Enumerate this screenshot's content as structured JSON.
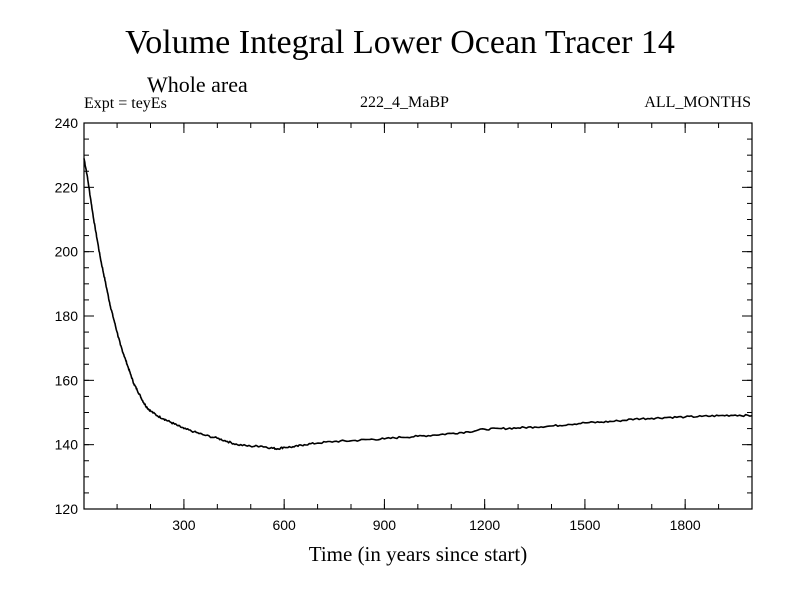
{
  "title": "Volume Integral Lower Ocean Tracer 14",
  "subtitle": "Whole area",
  "expt_label": "Expt = teyEs",
  "run_label": "222_4_MaBP",
  "months_label": "ALL_MONTHS",
  "chart_data": {
    "type": "line",
    "title": "Volume Integral Lower Ocean Tracer 14",
    "subtitle": "Whole area",
    "xlabel": "Time (in years since start)",
    "ylabel": "",
    "xlim": [
      1,
      2000
    ],
    "ylim": [
      120,
      240
    ],
    "x_ticks": [
      300,
      600,
      900,
      1200,
      1500,
      1800
    ],
    "y_ticks": [
      120,
      140,
      160,
      180,
      200,
      220,
      240
    ],
    "x_minor_step": 100,
    "y_minor_step": 5,
    "grid": false,
    "line_color": "#000000",
    "series": [
      {
        "name": "teyEs",
        "points": [
          [
            1,
            229
          ],
          [
            10,
            224
          ],
          [
            20,
            217
          ],
          [
            30,
            210
          ],
          [
            40,
            204
          ],
          [
            50,
            198
          ],
          [
            60,
            193
          ],
          [
            70,
            188
          ],
          [
            80,
            183
          ],
          [
            90,
            179
          ],
          [
            100,
            175
          ],
          [
            110,
            171
          ],
          [
            120,
            168
          ],
          [
            130,
            165
          ],
          [
            140,
            162
          ],
          [
            150,
            159
          ],
          [
            160,
            157
          ],
          [
            170,
            155
          ],
          [
            180,
            153
          ],
          [
            190,
            151.5
          ],
          [
            200,
            150.5
          ],
          [
            220,
            149
          ],
          [
            240,
            148
          ],
          [
            260,
            147
          ],
          [
            280,
            146
          ],
          [
            300,
            145
          ],
          [
            330,
            144
          ],
          [
            360,
            143
          ],
          [
            400,
            142
          ],
          [
            430,
            141
          ],
          [
            460,
            140
          ],
          [
            500,
            139.5
          ],
          [
            530,
            139.6
          ],
          [
            560,
            139
          ],
          [
            580,
            138.7
          ],
          [
            600,
            139.2
          ],
          [
            630,
            139.3
          ],
          [
            660,
            140
          ],
          [
            700,
            140.5
          ],
          [
            750,
            141
          ],
          [
            800,
            141.2
          ],
          [
            850,
            141.6
          ],
          [
            900,
            141.8
          ],
          [
            950,
            142.3
          ],
          [
            1000,
            142.6
          ],
          [
            1050,
            143
          ],
          [
            1100,
            143.5
          ],
          [
            1150,
            144
          ],
          [
            1200,
            144.8
          ],
          [
            1250,
            145
          ],
          [
            1300,
            145.2
          ],
          [
            1350,
            145.5
          ],
          [
            1400,
            145.8
          ],
          [
            1450,
            146.3
          ],
          [
            1500,
            146.8
          ],
          [
            1550,
            147
          ],
          [
            1600,
            147.4
          ],
          [
            1650,
            148
          ],
          [
            1700,
            148.2
          ],
          [
            1750,
            148.5
          ],
          [
            1800,
            148.6
          ],
          [
            1850,
            148.8
          ],
          [
            1900,
            149
          ],
          [
            1950,
            149.2
          ],
          [
            2000,
            149
          ]
        ]
      }
    ]
  }
}
